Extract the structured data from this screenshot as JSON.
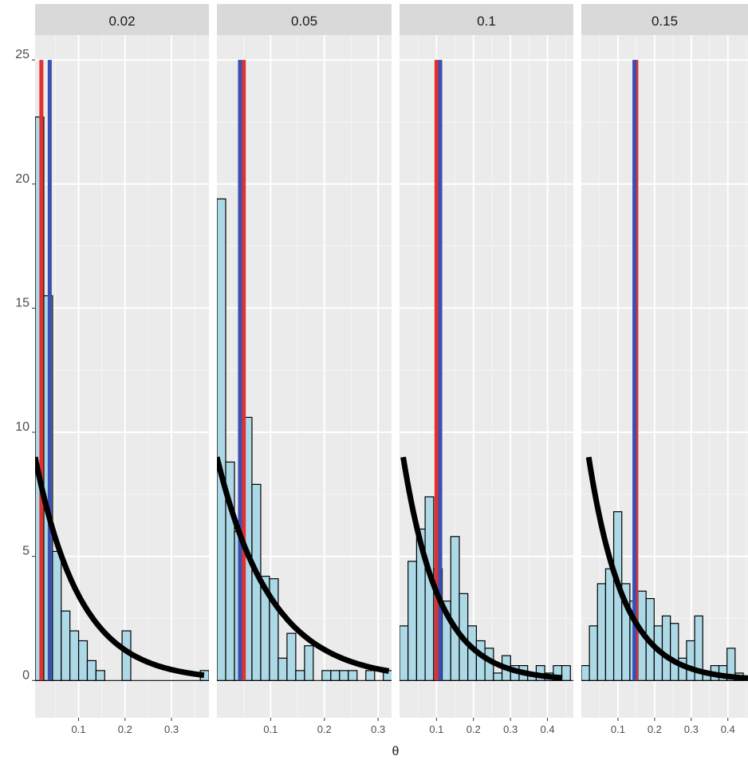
{
  "chart_data": {
    "type": "bar",
    "subtype": "faceted-histogram",
    "title": "",
    "xlabel": "θ",
    "ylabel": "",
    "ylim": [
      -1.5,
      26
    ],
    "yticks": [
      0,
      5,
      10,
      15,
      20,
      25
    ],
    "grid": true,
    "colors": {
      "bar_fill": "#add8e6",
      "bar_stroke": "#000000",
      "red_line": "#e03030",
      "blue_line": "#3a4fb0",
      "curve": "#000000",
      "panel_bg": "#ebebeb",
      "strip_bg": "#d9d9d9"
    },
    "facets": [
      {
        "label": "0.02",
        "xlim": [
          0.0065,
          0.3805
        ],
        "xticks": [
          0.1,
          0.2,
          0.3
        ],
        "xticklabels": [
          "0.1",
          "0.2",
          "0.3"
        ],
        "bin_width": 0.0187,
        "bins": [
          {
            "x": 0.016,
            "y": 22.7
          },
          {
            "x": 0.0347,
            "y": 15.5
          },
          {
            "x": 0.0534,
            "y": 5.2
          },
          {
            "x": 0.0721,
            "y": 2.8
          },
          {
            "x": 0.0908,
            "y": 2.0
          },
          {
            "x": 0.1095,
            "y": 1.6
          },
          {
            "x": 0.1282,
            "y": 0.8
          },
          {
            "x": 0.1469,
            "y": 0.4
          },
          {
            "x": 0.203,
            "y": 2.0
          },
          {
            "x": 0.3713,
            "y": 0.4
          }
        ],
        "red_line": 0.02,
        "blue_line": 0.038,
        "curve": {
          "a": 9.0,
          "b": 10.3,
          "x_from": 0.0065,
          "x_to": 0.37
        }
      },
      {
        "label": "0.05",
        "xlim": [
          0.0,
          0.325
        ],
        "xticks": [
          0.1,
          0.2,
          0.3
        ],
        "xticklabels": [
          "0.1",
          "0.2",
          "0.3"
        ],
        "bin_width": 0.0163,
        "bins": [
          {
            "x": 0.0082,
            "y": 19.4
          },
          {
            "x": 0.0245,
            "y": 8.8
          },
          {
            "x": 0.0408,
            "y": 6.0
          },
          {
            "x": 0.0571,
            "y": 10.6
          },
          {
            "x": 0.0734,
            "y": 7.9
          },
          {
            "x": 0.0897,
            "y": 4.2
          },
          {
            "x": 0.106,
            "y": 4.1
          },
          {
            "x": 0.1223,
            "y": 0.9
          },
          {
            "x": 0.1386,
            "y": 1.9
          },
          {
            "x": 0.1549,
            "y": 0.4
          },
          {
            "x": 0.1712,
            "y": 1.4
          },
          {
            "x": 0.2038,
            "y": 0.4
          },
          {
            "x": 0.2201,
            "y": 0.4
          },
          {
            "x": 0.2364,
            "y": 0.4
          },
          {
            "x": 0.2527,
            "y": 0.4
          },
          {
            "x": 0.2853,
            "y": 0.4
          },
          {
            "x": 0.3179,
            "y": 0.4
          }
        ],
        "red_line": 0.05,
        "blue_line": 0.043,
        "curve": {
          "a": 9.0,
          "b": 9.9,
          "x_from": 0.0,
          "x_to": 0.32
        }
      },
      {
        "label": "0.1",
        "xlim": [
          0.0,
          0.47
        ],
        "xticks": [
          0.1,
          0.2,
          0.3,
          0.4
        ],
        "xticklabels": [
          "0.1",
          "0.2",
          "0.3",
          "0.4"
        ],
        "bin_width": 0.0231,
        "bins": [
          {
            "x": 0.0115,
            "y": 2.2
          },
          {
            "x": 0.0346,
            "y": 4.8
          },
          {
            "x": 0.0577,
            "y": 6.1
          },
          {
            "x": 0.0808,
            "y": 7.4
          },
          {
            "x": 0.1039,
            "y": 4.5
          },
          {
            "x": 0.127,
            "y": 3.2
          },
          {
            "x": 0.1501,
            "y": 5.8
          },
          {
            "x": 0.1732,
            "y": 3.5
          },
          {
            "x": 0.1963,
            "y": 2.2
          },
          {
            "x": 0.2194,
            "y": 1.6
          },
          {
            "x": 0.2425,
            "y": 1.3
          },
          {
            "x": 0.2656,
            "y": 0.3
          },
          {
            "x": 0.2887,
            "y": 1.0
          },
          {
            "x": 0.3118,
            "y": 0.6
          },
          {
            "x": 0.3349,
            "y": 0.6
          },
          {
            "x": 0.358,
            "y": 0.3
          },
          {
            "x": 0.3811,
            "y": 0.6
          },
          {
            "x": 0.4042,
            "y": 0.3
          },
          {
            "x": 0.4273,
            "y": 0.6
          },
          {
            "x": 0.4504,
            "y": 0.6
          }
        ],
        "red_line": 0.1,
        "blue_line": 0.11,
        "curve": {
          "a": 9.0,
          "b": 10.3,
          "x_from": 0.01,
          "x_to": 0.44
        }
      },
      {
        "label": "0.15",
        "xlim": [
          0.0,
          0.455
        ],
        "xticks": [
          0.1,
          0.2,
          0.3,
          0.4
        ],
        "xticklabels": [
          "0.1",
          "0.2",
          "0.3",
          "0.4"
        ],
        "bin_width": 0.0221,
        "bins": [
          {
            "x": 0.011,
            "y": 0.6
          },
          {
            "x": 0.0331,
            "y": 2.2
          },
          {
            "x": 0.0552,
            "y": 3.9
          },
          {
            "x": 0.0773,
            "y": 4.5
          },
          {
            "x": 0.0994,
            "y": 6.8
          },
          {
            "x": 0.1215,
            "y": 3.9
          },
          {
            "x": 0.1436,
            "y": 3.2
          },
          {
            "x": 0.1657,
            "y": 3.6
          },
          {
            "x": 0.1878,
            "y": 3.3
          },
          {
            "x": 0.2099,
            "y": 2.2
          },
          {
            "x": 0.232,
            "y": 2.6
          },
          {
            "x": 0.2541,
            "y": 2.3
          },
          {
            "x": 0.2762,
            "y": 0.9
          },
          {
            "x": 0.2983,
            "y": 1.6
          },
          {
            "x": 0.3204,
            "y": 2.6
          },
          {
            "x": 0.3425,
            "y": 0.3
          },
          {
            "x": 0.3646,
            "y": 0.6
          },
          {
            "x": 0.3867,
            "y": 0.6
          },
          {
            "x": 0.4088,
            "y": 1.3
          },
          {
            "x": 0.4309,
            "y": 0.3
          }
        ],
        "red_line": 0.15,
        "blue_line": 0.145,
        "curve": {
          "a": 9.0,
          "b": 10.5,
          "x_from": 0.02,
          "x_to": 0.455
        }
      }
    ]
  }
}
